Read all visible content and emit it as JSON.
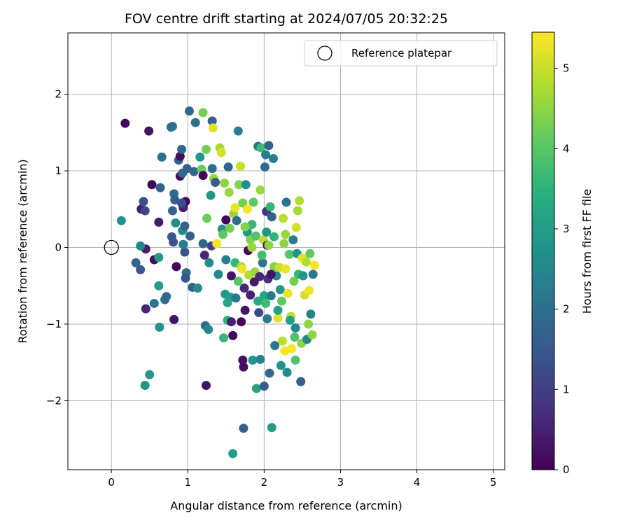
{
  "chart_data": {
    "type": "scatter",
    "title": "FOV centre drift starting at 2024/07/05 20:32:25",
    "xlabel": "Angular distance from reference (arcmin)",
    "ylabel": "Rotation from reference (arcmin)",
    "xlim": [
      -0.57,
      5.15
    ],
    "ylim": [
      -2.9,
      2.8
    ],
    "x_ticks": [
      0,
      1,
      2,
      3,
      4,
      5
    ],
    "y_ticks": [
      -2,
      -1,
      0,
      1,
      2
    ],
    "grid": true,
    "legend": {
      "position": "top-right",
      "entries": [
        "Reference platepar"
      ]
    },
    "colorbar": {
      "label": "Hours from first FF file",
      "min": 0,
      "max": 5.45,
      "ticks": [
        0,
        1,
        2,
        3,
        4,
        5
      ],
      "colormap": "viridis"
    },
    "reference_point": {
      "x": 0.0,
      "y": 0.0,
      "label": "Reference platepar"
    },
    "points": [
      [
        0.18,
        1.62,
        0.1
      ],
      [
        0.49,
        1.52,
        0.3
      ],
      [
        0.53,
        0.82,
        0.1
      ],
      [
        0.39,
        0.5,
        0.4
      ],
      [
        0.42,
        0.6,
        1.3
      ],
      [
        0.44,
        0.48,
        1.1
      ],
      [
        0.45,
        -0.02,
        0.4
      ],
      [
        0.45,
        -0.8,
        0.6
      ],
      [
        0.44,
        -1.8,
        2.8
      ],
      [
        0.5,
        -1.66,
        2.9
      ],
      [
        0.32,
        -0.2,
        1.8
      ],
      [
        0.38,
        0.02,
        2.5
      ],
      [
        0.38,
        -0.29,
        1.5
      ],
      [
        0.13,
        0.35,
        2.8
      ],
      [
        0.56,
        -0.16,
        0.2
      ],
      [
        0.62,
        -0.13,
        3.0
      ],
      [
        0.62,
        0.33,
        0.4
      ],
      [
        0.62,
        -0.5,
        3.0
      ],
      [
        0.56,
        -0.73,
        2.1
      ],
      [
        0.63,
        -1.04,
        2.8
      ],
      [
        0.66,
        1.18,
        2.0
      ],
      [
        0.64,
        0.78,
        1.7
      ],
      [
        0.7,
        -0.68,
        2.0
      ],
      [
        0.72,
        -0.64,
        1.9
      ],
      [
        0.78,
        1.57,
        2.1
      ],
      [
        0.8,
        1.58,
        2.0
      ],
      [
        0.8,
        0.48,
        1.7
      ],
      [
        0.79,
        0.14,
        1.5
      ],
      [
        0.81,
        0.07,
        1.4
      ],
      [
        0.82,
        -0.94,
        0.3
      ],
      [
        0.82,
        0.7,
        1.9
      ],
      [
        0.83,
        0.62,
        1.6
      ],
      [
        0.84,
        0.32,
        2.7
      ],
      [
        0.85,
        -0.25,
        0.1
      ],
      [
        0.88,
        1.14,
        1.7
      ],
      [
        0.9,
        1.19,
        0.2
      ],
      [
        0.9,
        0.93,
        0.2
      ],
      [
        0.92,
        1.28,
        1.8
      ],
      [
        0.93,
        0.97,
        1.9
      ],
      [
        0.94,
        0.52,
        0.5
      ],
      [
        0.93,
        0.22,
        2.6
      ],
      [
        0.96,
        0.28,
        1.7
      ],
      [
        0.96,
        -0.06,
        1.4
      ],
      [
        0.98,
        -0.33,
        1.9
      ],
      [
        0.97,
        -0.4,
        1.5
      ],
      [
        0.97,
        0.6,
        0.1
      ],
      [
        0.94,
        0.04,
        2.3
      ],
      [
        0.92,
        0.58,
        1.3
      ],
      [
        0.99,
        1.03,
        1.7
      ],
      [
        1.02,
        1.78,
        1.8
      ],
      [
        1.03,
        0.15,
        1.7
      ],
      [
        1.06,
        -0.52,
        1.7
      ],
      [
        1.08,
        0.99,
        1.8
      ],
      [
        1.1,
        1.63,
        2.0
      ],
      [
        1.13,
        -0.53,
        2.7
      ],
      [
        1.16,
        1.18,
        2.9
      ],
      [
        1.2,
        1.76,
        4.3
      ],
      [
        1.18,
        1.02,
        4.2
      ],
      [
        1.2,
        0.94,
        0.1
      ],
      [
        1.2,
        0.05,
        1.8
      ],
      [
        1.22,
        -0.1,
        0.6
      ],
      [
        1.23,
        -1.02,
        2.0
      ],
      [
        1.24,
        -1.8,
        0.3
      ],
      [
        1.25,
        0.38,
        4.2
      ],
      [
        1.24,
        1.28,
        4.3
      ],
      [
        1.27,
        -1.07,
        2.5
      ],
      [
        1.28,
        -0.2,
        2.6
      ],
      [
        1.31,
        0.02,
        1.1
      ],
      [
        1.3,
        0.68,
        2.9
      ],
      [
        1.32,
        1.65,
        1.7
      ],
      [
        1.32,
        1.03,
        2.0
      ],
      [
        1.33,
        1.56,
        5.2
      ],
      [
        1.34,
        0.9,
        4.6
      ],
      [
        1.36,
        0.85,
        1.6
      ],
      [
        1.38,
        0.05,
        5.4
      ],
      [
        1.4,
        -0.35,
        2.5
      ],
      [
        1.42,
        1.3,
        4.7
      ],
      [
        1.44,
        1.24,
        5.1
      ],
      [
        1.45,
        0.24,
        2.8
      ],
      [
        1.46,
        0.17,
        4.1
      ],
      [
        1.47,
        -1.18,
        3.6
      ],
      [
        1.48,
        0.84,
        4.5
      ],
      [
        1.49,
        -0.61,
        2.9
      ],
      [
        1.5,
        0.36,
        0.1
      ],
      [
        1.5,
        -0.16,
        2.3
      ],
      [
        1.52,
        -0.95,
        3.5
      ],
      [
        1.53,
        1.05,
        1.8
      ],
      [
        1.54,
        0.72,
        4.6
      ],
      [
        1.55,
        0.25,
        4.3
      ],
      [
        1.56,
        -0.65,
        3.0
      ],
      [
        1.57,
        -0.37,
        0.3
      ],
      [
        1.57,
        -0.97,
        0.5
      ],
      [
        1.59,
        -1.15,
        0.1
      ],
      [
        1.59,
        -2.69,
        3.0
      ],
      [
        1.6,
        0.44,
        4.6
      ],
      [
        1.62,
        0.52,
        5.3
      ],
      [
        1.62,
        -0.2,
        3.6
      ],
      [
        1.63,
        -0.66,
        2.2
      ],
      [
        1.64,
        0.35,
        1.9
      ],
      [
        1.66,
        1.52,
        2.3
      ],
      [
        1.67,
        0.82,
        4.4
      ],
      [
        1.69,
        1.06,
        5.0
      ],
      [
        1.7,
        -0.25,
        4.7
      ],
      [
        1.7,
        -0.97,
        0.1
      ],
      [
        1.71,
        -0.28,
        5.3
      ],
      [
        1.72,
        0.58,
        4.3
      ],
      [
        1.72,
        -1.47,
        0.2
      ],
      [
        1.73,
        -2.36,
        1.6
      ],
      [
        1.73,
        -1.56,
        0.2
      ],
      [
        1.74,
        -0.53,
        0.6
      ],
      [
        1.75,
        -0.82,
        0.3
      ],
      [
        1.76,
        0.82,
        2.7
      ],
      [
        1.78,
        0.5,
        5.4
      ],
      [
        1.78,
        0.2,
        2.9
      ],
      [
        1.79,
        -0.04,
        0.1
      ],
      [
        1.8,
        -0.36,
        4.8
      ],
      [
        1.82,
        0.1,
        4.4
      ],
      [
        1.82,
        -0.62,
        0.5
      ],
      [
        1.84,
        0.3,
        3.6
      ],
      [
        1.85,
        -1.47,
        2.8
      ],
      [
        1.86,
        0.59,
        4.1
      ],
      [
        1.88,
        -0.32,
        4.6
      ],
      [
        1.89,
        0.15,
        3.9
      ],
      [
        1.9,
        -1.84,
        3.1
      ],
      [
        1.92,
        1.32,
        2.1
      ],
      [
        1.93,
        -0.85,
        1.2
      ],
      [
        1.94,
        -0.38,
        0.6
      ],
      [
        1.95,
        0.75,
        4.6
      ],
      [
        1.95,
        -1.46,
        2.4
      ],
      [
        1.96,
        1.3,
        3.7
      ],
      [
        1.98,
        -0.2,
        2.2
      ],
      [
        1.99,
        0.1,
        4.9
      ],
      [
        2.0,
        -0.63,
        3.2
      ],
      [
        2.0,
        -1.81,
        1.6
      ],
      [
        2.01,
        1.05,
        1.9
      ],
      [
        2.02,
        1.21,
        2.3
      ],
      [
        2.03,
        0.47,
        0.9
      ],
      [
        2.04,
        0.03,
        0.3
      ],
      [
        2.04,
        -0.93,
        2.2
      ],
      [
        2.05,
        -0.41,
        0.8
      ],
      [
        2.06,
        1.33,
        1.7
      ],
      [
        2.06,
        0.03,
        4.5
      ],
      [
        2.07,
        -1.64,
        1.8
      ],
      [
        2.08,
        0.53,
        3.6
      ],
      [
        2.09,
        -0.63,
        2.2
      ],
      [
        2.1,
        -2.35,
        3.0
      ],
      [
        2.1,
        0.4,
        1.7
      ],
      [
        2.12,
        1.16,
        2.3
      ],
      [
        2.13,
        -0.25,
        4.4
      ],
      [
        2.14,
        -1.28,
        2.1
      ],
      [
        2.16,
        -0.37,
        2.6
      ],
      [
        2.18,
        -0.92,
        5.2
      ],
      [
        2.2,
        -0.26,
        5.0
      ],
      [
        2.21,
        -0.55,
        2.8
      ],
      [
        2.22,
        -1.54,
        2.8
      ],
      [
        2.24,
        -1.22,
        4.9
      ],
      [
        2.25,
        0.38,
        4.9
      ],
      [
        2.27,
        -1.35,
        5.4
      ],
      [
        2.28,
        0.17,
        4.6
      ],
      [
        2.28,
        -0.28,
        5.3
      ],
      [
        2.29,
        0.59,
        2.0
      ],
      [
        2.3,
        -1.63,
        2.7
      ],
      [
        2.31,
        -0.6,
        5.3
      ],
      [
        2.33,
        -0.09,
        4.0
      ],
      [
        2.35,
        -0.9,
        4.9
      ],
      [
        2.36,
        -1.32,
        5.4
      ],
      [
        2.38,
        0.1,
        2.3
      ],
      [
        2.39,
        -0.44,
        4.3
      ],
      [
        2.4,
        -1.17,
        3.9
      ],
      [
        2.41,
        -1.47,
        3.9
      ],
      [
        2.42,
        0.26,
        5.1
      ],
      [
        2.43,
        -0.08,
        2.8
      ],
      [
        2.44,
        0.48,
        4.7
      ],
      [
        2.45,
        -0.35,
        3.6
      ],
      [
        2.46,
        0.61,
        4.8
      ],
      [
        2.48,
        -1.75,
        1.7
      ],
      [
        2.49,
        -1.25,
        4.5
      ],
      [
        2.5,
        -0.14,
        5.2
      ],
      [
        2.51,
        -0.37,
        2.8
      ],
      [
        2.53,
        -0.62,
        5.1
      ],
      [
        2.55,
        -0.19,
        4.8
      ],
      [
        2.56,
        -1.2,
        2.5
      ],
      [
        2.58,
        -1.0,
        4.5
      ],
      [
        2.59,
        -0.56,
        5.3
      ],
      [
        2.6,
        -0.08,
        4.1
      ],
      [
        2.61,
        -0.87,
        2.4
      ],
      [
        2.63,
        -1.14,
        4.5
      ],
      [
        2.64,
        -0.35,
        2.2
      ],
      [
        2.66,
        -0.23,
        5.4
      ],
      [
        2.09,
        -0.35,
        0.3
      ],
      [
        1.87,
        -0.45,
        0.4
      ],
      [
        1.92,
        -0.7,
        3.3
      ],
      [
        2.18,
        -0.82,
        3.1
      ],
      [
        2.02,
        -0.73,
        3.7
      ],
      [
        1.66,
        -0.44,
        4.0
      ],
      [
        1.75,
        0.27,
        4.4
      ],
      [
        1.52,
        -0.72,
        3.2
      ],
      [
        2.26,
        0.05,
        4.5
      ],
      [
        2.13,
        0.14,
        3.5
      ],
      [
        2.23,
        -0.7,
        4.1
      ],
      [
        1.84,
        0.0,
        4.6
      ],
      [
        1.97,
        -0.1,
        3.8
      ],
      [
        2.34,
        -0.95,
        3.0
      ],
      [
        2.41,
        -1.05,
        2.5
      ],
      [
        2.03,
        0.2,
        2.9
      ]
    ]
  }
}
